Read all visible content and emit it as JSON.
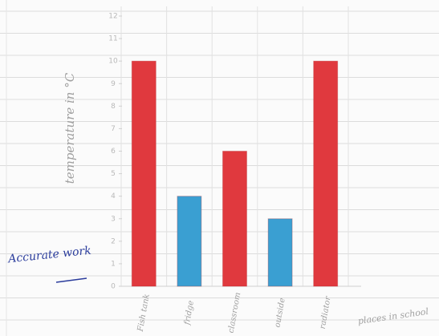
{
  "chart_data": {
    "type": "bar",
    "y_label": "temperature in °C",
    "x_label": "places in school",
    "annotation": "Accurate work",
    "categories": [
      "Fish tank",
      "fridge",
      "classroom",
      "outside",
      "radiator"
    ],
    "values": [
      10,
      4,
      6,
      3,
      10
    ],
    "colors": [
      "#e0393e",
      "#3a9fd2",
      "#e0393e",
      "#3a9fd2",
      "#e0393e"
    ],
    "ylim": [
      0,
      12
    ],
    "yticks": [
      0,
      1,
      2,
      3,
      4,
      5,
      6,
      7,
      8,
      9,
      10,
      11,
      12
    ]
  }
}
